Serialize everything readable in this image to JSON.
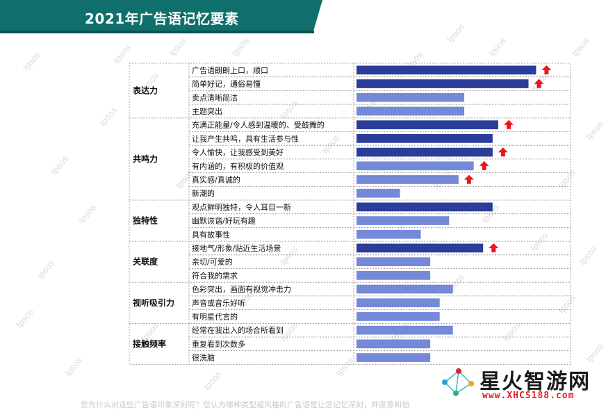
{
  "page": {
    "title": "2021年广告语记忆要素",
    "watermark": "Ipsos",
    "footer": "您为什么对这些广告语印象深刻呢？您认为哪种类型或风格的广告语是让您记忆深刻，并愿意和他",
    "logo_name": "星火智游网",
    "logo_url": "www.XHCS188.com"
  },
  "colors": {
    "dark_bar": "#2b3d98",
    "light_bar": "#7489d8",
    "arrow": "#e8171f",
    "banner": "#0f6f6c"
  },
  "chart_data": {
    "type": "bar",
    "orientation": "horizontal",
    "title": "2021年广告语记忆要素",
    "xlim": [
      0,
      100
    ],
    "grid": false,
    "legend": "none",
    "groups": [
      {
        "name": "表达力",
        "items": [
          {
            "label": "广告语朗朗上口，顺口",
            "value": 95,
            "highlight": true,
            "up": true
          },
          {
            "label": "简单好记，通俗易懂",
            "value": 91,
            "highlight": true,
            "up": true
          },
          {
            "label": "卖点清晰简洁",
            "value": 57,
            "highlight": false,
            "up": false
          },
          {
            "label": "主题突出",
            "value": 57,
            "highlight": false,
            "up": false
          }
        ]
      },
      {
        "name": "共鸣力",
        "items": [
          {
            "label": "充满正能量/令人感到温暖的、受鼓舞的",
            "value": 75,
            "highlight": true,
            "up": true
          },
          {
            "label": "让我产生共鸣，具有生活参与性",
            "value": 72,
            "highlight": true,
            "up": false
          },
          {
            "label": "令人愉快，让我感受到美好",
            "value": 72,
            "highlight": true,
            "up": true
          },
          {
            "label": "有内涵的，有积极的价值观",
            "value": 62,
            "highlight": false,
            "up": true
          },
          {
            "label": "真实感/真诚的",
            "value": 54,
            "highlight": false,
            "up": true
          },
          {
            "label": "新潮的",
            "value": 23,
            "highlight": false,
            "up": false
          }
        ]
      },
      {
        "name": "独特性",
        "items": [
          {
            "label": "观点鲜明独特，令人耳目一新",
            "value": 72,
            "highlight": true,
            "up": false
          },
          {
            "label": "幽默诙谐/好玩有趣",
            "value": 49,
            "highlight": false,
            "up": false
          },
          {
            "label": "具有故事性",
            "value": 34,
            "highlight": false,
            "up": false
          }
        ]
      },
      {
        "name": "关联度",
        "items": [
          {
            "label": "接地气/形象/贴近生活场景",
            "value": 67,
            "highlight": true,
            "up": true
          },
          {
            "label": "亲切/可爱的",
            "value": 39,
            "highlight": false,
            "up": false
          },
          {
            "label": "符合我的需求",
            "value": 39,
            "highlight": false,
            "up": false
          }
        ]
      },
      {
        "name": "视听吸引力",
        "items": [
          {
            "label": "色彩突出，画面有视觉冲击力",
            "value": 51,
            "highlight": false,
            "up": false
          },
          {
            "label": "声音或音乐好听",
            "value": 44,
            "highlight": false,
            "up": false
          },
          {
            "label": "有明星代言的",
            "value": 44,
            "highlight": false,
            "up": false
          }
        ]
      },
      {
        "name": "接触频率",
        "items": [
          {
            "label": "经常在我出入的场合所看到",
            "value": 51,
            "highlight": false,
            "up": false
          },
          {
            "label": "重复看到次数多",
            "value": 39,
            "highlight": false,
            "up": false
          },
          {
            "label": "很洗脑",
            "value": 39,
            "highlight": false,
            "up": false
          }
        ]
      }
    ]
  }
}
